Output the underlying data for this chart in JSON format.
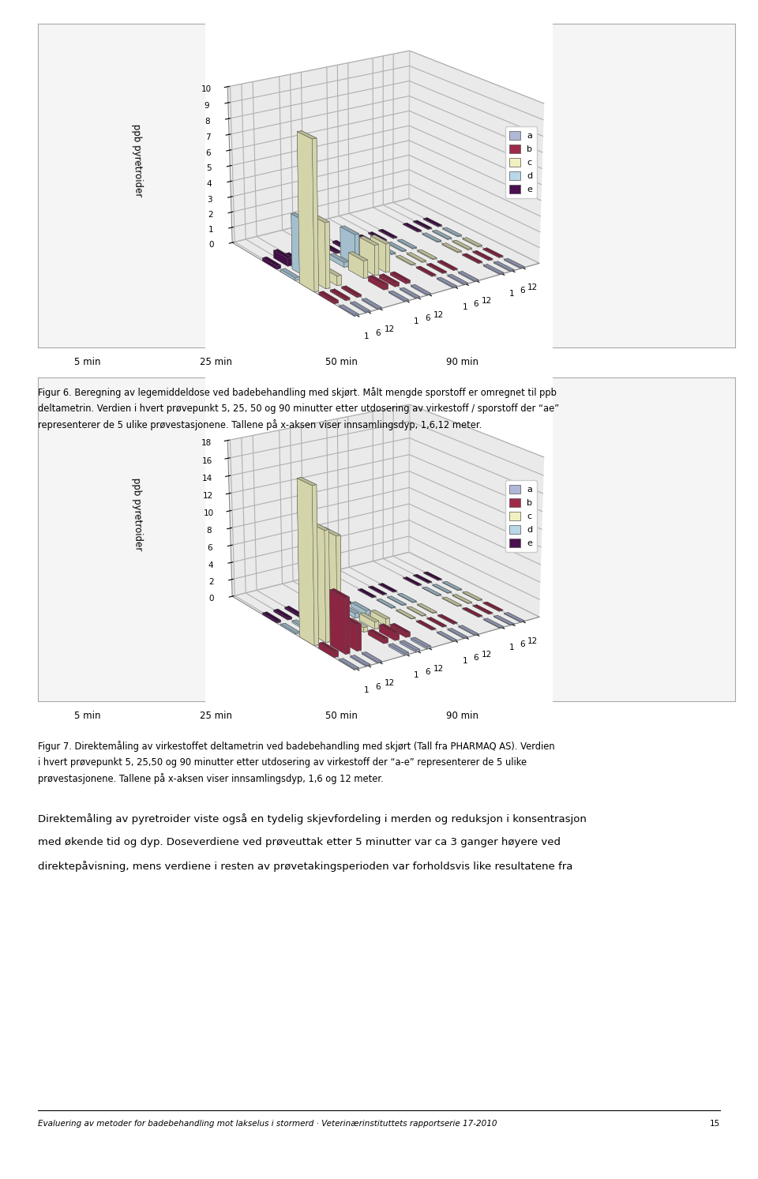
{
  "chart1": {
    "ylabel": "ppb pyretroider",
    "ylim": [
      0,
      10
    ],
    "yticks": [
      0,
      1,
      2,
      3,
      4,
      5,
      6,
      7,
      8,
      9,
      10
    ],
    "series_colors": [
      "#b0b8d8",
      "#9e2a4a",
      "#f0f0c0",
      "#b8d8e8",
      "#4a1050"
    ],
    "series_labels": [
      "a",
      "b",
      "c",
      "d",
      "e"
    ],
    "time_labels": [
      "5 min",
      "25 min",
      "50 min",
      "90 min"
    ],
    "depth_labels": [
      "1",
      "6",
      "12"
    ],
    "data_5min": [
      [
        0.05,
        0.15,
        9.3,
        0.15,
        0.2
      ],
      [
        0.05,
        0.1,
        4.1,
        3.5,
        0.5
      ],
      [
        0.05,
        0.1,
        0.6,
        0.6,
        0.1
      ]
    ],
    "data_25min": [
      [
        0.05,
        0.3,
        1.1,
        0.3,
        0.1
      ],
      [
        0.05,
        0.2,
        1.9,
        1.9,
        0.1
      ],
      [
        0.05,
        0.15,
        1.8,
        0.2,
        0.1
      ]
    ],
    "data_50min": [
      [
        0.05,
        0.05,
        0.05,
        0.05,
        0.05
      ],
      [
        0.05,
        0.05,
        0.05,
        0.05,
        0.05
      ],
      [
        0.05,
        0.05,
        0.05,
        0.05,
        0.05
      ]
    ],
    "data_90min": [
      [
        0.05,
        0.05,
        0.05,
        0.05,
        0.05
      ],
      [
        0.05,
        0.05,
        0.05,
        0.05,
        0.05
      ],
      [
        0.05,
        0.05,
        0.05,
        0.05,
        0.05
      ]
    ]
  },
  "chart2": {
    "ylabel": "ppb pyretroider",
    "ylim": [
      0,
      18
    ],
    "yticks": [
      0,
      2,
      4,
      6,
      8,
      10,
      12,
      14,
      16,
      18
    ],
    "series_colors": [
      "#b0b8d8",
      "#9e2a4a",
      "#f0f0c0",
      "#b8d8e8",
      "#4a1050"
    ],
    "series_labels": [
      "a",
      "b",
      "c",
      "d",
      "e"
    ],
    "time_labels": [
      "5 min",
      "25 min",
      "50 min",
      "90 min"
    ],
    "depth_labels": [
      "1",
      "6",
      "12"
    ],
    "data_5min": [
      [
        0.1,
        0.6,
        17.5,
        0.15,
        0.2
      ],
      [
        0.1,
        6.2,
        12.4,
        0.2,
        0.2
      ],
      [
        0.1,
        2.9,
        11.5,
        0.3,
        0.2
      ]
    ],
    "data_25min": [
      [
        0.2,
        0.5,
        0.5,
        0.5,
        0.2
      ],
      [
        0.2,
        0.8,
        0.8,
        0.5,
        0.2
      ],
      [
        0.2,
        0.5,
        0.8,
        0.5,
        0.2
      ]
    ],
    "data_50min": [
      [
        0.05,
        0.05,
        0.05,
        0.05,
        0.05
      ],
      [
        0.05,
        0.05,
        0.05,
        0.05,
        0.05
      ],
      [
        0.05,
        0.05,
        0.05,
        0.05,
        0.05
      ]
    ],
    "data_90min": [
      [
        0.05,
        0.05,
        0.05,
        0.05,
        0.05
      ],
      [
        0.05,
        0.05,
        0.05,
        0.05,
        0.05
      ],
      [
        0.05,
        0.05,
        0.05,
        0.05,
        0.05
      ]
    ]
  },
  "fig6_line1": "Figur 6. Beregning av legemiddeldose ved badebehandling med skjørt. Målt mengde sporstoff er omregnet til ppb",
  "fig6_line2": "deltametrin. Verdien i hvert prøvepunkt 5, 25, 50 og 90 minutter etter utdosering av virkestoff / sporstoff der “ae”",
  "fig6_line3": "representerer de 5 ulike prøvestasjonene. Tallene på x-aksen viser innsamlingsdyp, 1,6,12 meter.",
  "fig7_line1": "Figur 7. Direktemåling av virkestoffet deltametrin ved badebehandling med skjørt (Tall fra PHARMAQ AS). Verdien",
  "fig7_line2": "i hvert prøvepunkt 5, 25,50 og 90 minutter etter utdosering av virkestoff der “a-e” representerer de 5 ulike",
  "fig7_line3": "prøvestasjonene. Tallene på x-aksen viser innsamlingsdyp, 1,6 og 12 meter.",
  "body_line1": "Direktemåling av pyretroider viste også en tydelig skjevfordeling i merden og reduksjon i konsentrasjon",
  "body_line2": "med økende tid og dyp. Doseverdiene ved prøveuttak etter 5 minutter var ca 3 ganger høyere ved",
  "body_line3": "direktepåvisning, mens verdiene i resten av prøvetakingsperioden var forholdsvis like resultatene fra",
  "footer": "Evaluering av metoder for badebehandling mot lakselus i stormerd · Veterinærinstituttets rapportserie 17-2010",
  "page": "15"
}
